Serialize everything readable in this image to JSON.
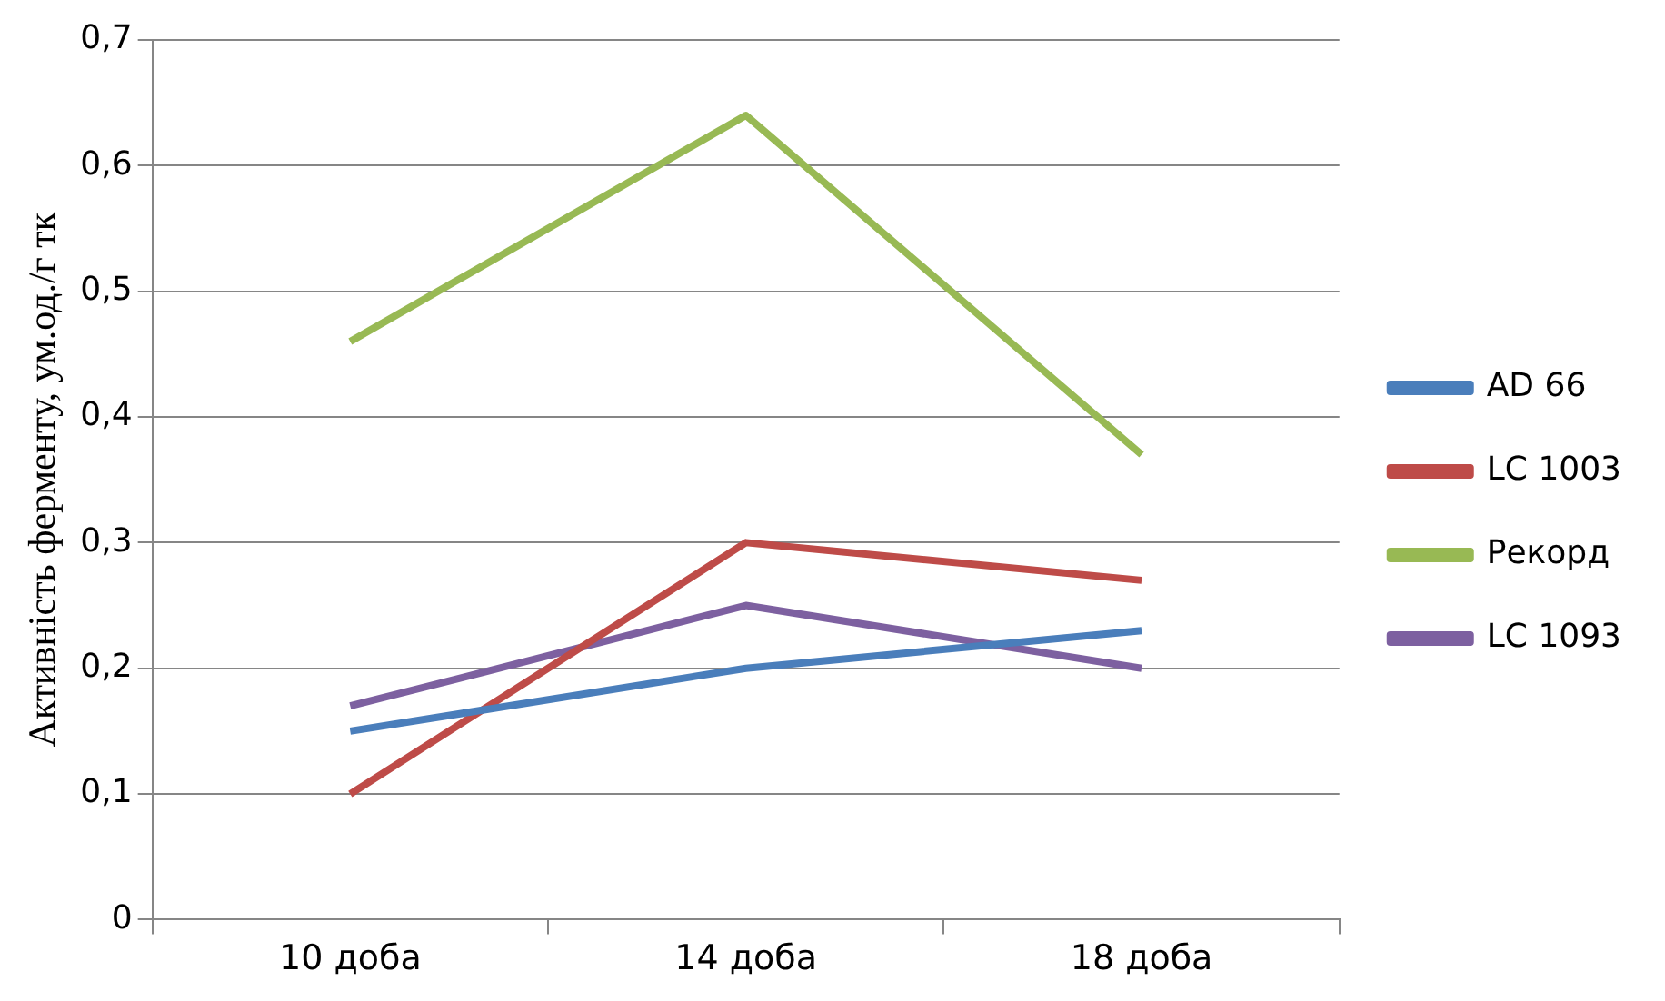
{
  "chart_data": {
    "type": "line",
    "ylabel": "Активність ферменту, ум.од./г тк",
    "categories": [
      "10 доба",
      "14 доба",
      "18 доба"
    ],
    "series": [
      {
        "name": "AD 66",
        "color": "#4a7ebb",
        "values": [
          0.15,
          0.2,
          0.23
        ]
      },
      {
        "name": "LC 1003",
        "color": "#be4b48",
        "values": [
          0.1,
          0.3,
          0.27
        ]
      },
      {
        "name": "Рекорд",
        "color": "#98b954",
        "values": [
          0.46,
          0.64,
          0.37
        ]
      },
      {
        "name": "LC 1093",
        "color": "#7d60a0",
        "values": [
          0.17,
          0.25,
          0.2
        ]
      }
    ],
    "ylim": [
      0,
      0.7
    ],
    "yticks": [
      0,
      {
        "value": 0.1,
        "label": "0,1"
      },
      {
        "value": 0.2,
        "label": "0,2"
      },
      {
        "value": 0.3,
        "label": "0,3"
      },
      {
        "value": 0.4,
        "label": "0,4"
      },
      {
        "value": 0.5,
        "label": "0,5"
      },
      {
        "value": 0.6,
        "label": "0,6"
      },
      {
        "value": 0.7,
        "label": "0,7"
      }
    ],
    "grid": "y",
    "legend": "right",
    "marker": "none",
    "line_style": "solid"
  }
}
